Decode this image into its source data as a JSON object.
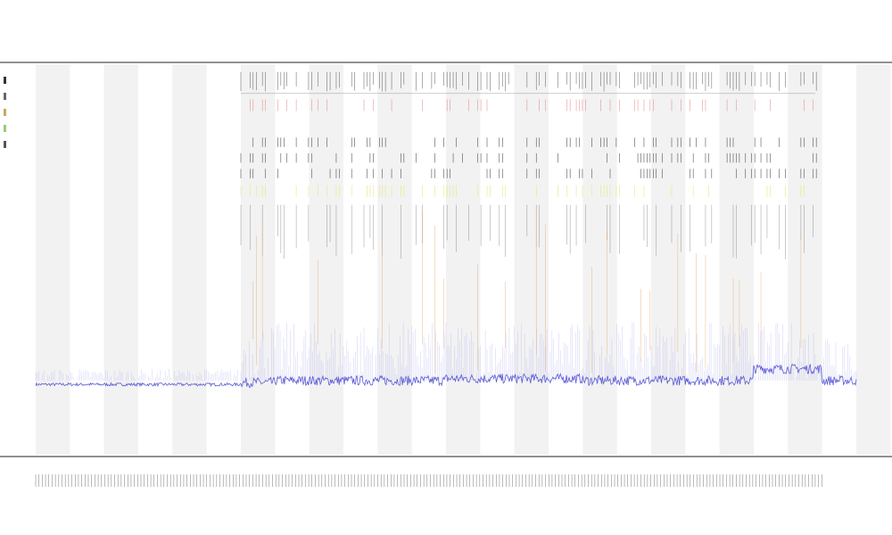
{
  "chart_data": {
    "type": "line",
    "title": "",
    "subtitle_lines": [],
    "xlabel": "",
    "ylabel": "",
    "x": {
      "range": [
        0,
        240
      ],
      "tick_count": 240
    },
    "ylim": [
      0,
      100
    ],
    "grid": false,
    "shaded_bands": {
      "period": 20,
      "width": 10,
      "count": 23
    },
    "series": [
      {
        "style": "line",
        "color": "#5b5bd6",
        "baseline_segments": [
          {
            "x": [
              0,
              60
            ],
            "y": 18
          },
          {
            "x": [
              60,
              70
            ],
            "y": 18.5
          },
          {
            "x": [
              70,
              120
            ],
            "y": 19
          },
          {
            "x": [
              120,
              160
            ],
            "y": 19.5
          },
          {
            "x": [
              160,
              210
            ],
            "y": 19
          },
          {
            "x": [
              210,
              230
            ],
            "y": 22
          },
          {
            "x": [
              230,
              240
            ],
            "y": 19
          }
        ]
      },
      {
        "style": "event-ticks-top",
        "color": "#555555",
        "row_y": 97
      },
      {
        "style": "event-ticks-red",
        "color": "#e06666",
        "row_y": 90
      },
      {
        "style": "event-ticks-black",
        "color": "#333333",
        "row_ys": [
          80,
          76,
          72
        ]
      },
      {
        "style": "event-ticks-yellow",
        "color": "#e8e87a",
        "row_y": 68
      },
      {
        "style": "event-spikes-orange",
        "color": "#e8a060"
      }
    ],
    "legend": {
      "placement": "left",
      "colors": [
        "#333333",
        "#666666",
        "#c9a85b",
        "#9bc97a",
        "#555555"
      ]
    },
    "inner_labels": {
      "left_markers": []
    }
  },
  "colors": {
    "band": "#f2f2f2",
    "axis": "#222222",
    "baseline": "#5b5bd6",
    "noise": "#a9a9f0",
    "orange": "#e8a060",
    "red": "#e06666",
    "yellow": "#e8e87a",
    "black_ticks": "#333333"
  }
}
